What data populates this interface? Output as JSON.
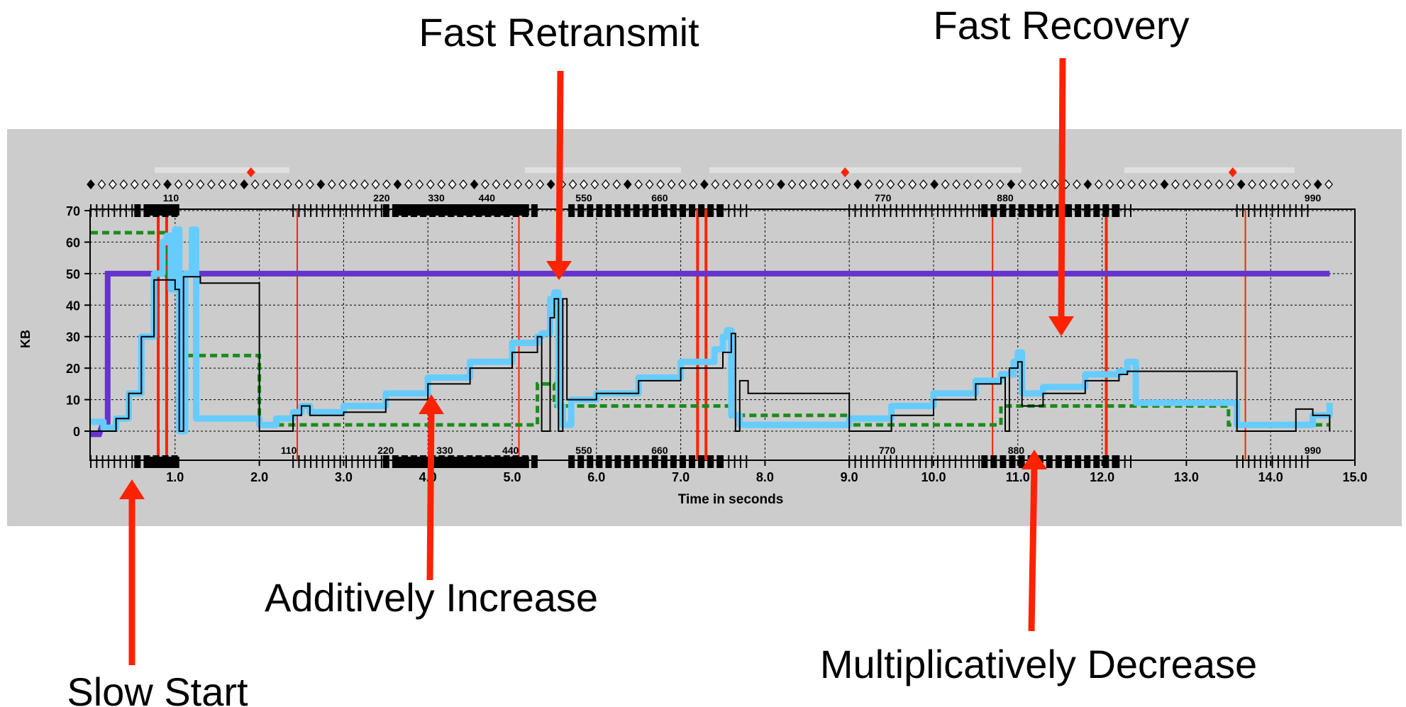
{
  "annotations": {
    "fast_retransmit": "Fast Retransmit",
    "fast_recovery": "Fast Recovery",
    "additively_increase": "Additively Increase",
    "multiplicatively_decrease": "Multiplicatively Decrease",
    "slow_start": "Slow Start"
  },
  "colors": {
    "panel_bg": "#cccccc",
    "congestion_window": "#66ccff",
    "outstanding_data": "#000000",
    "ssthresh": "#1a8c1a",
    "receive_window": "#6633cc",
    "retransmit_marker": "#ff2200",
    "arrow": "#ff2200"
  },
  "chart_data": {
    "type": "line",
    "xlabel": "Time in seconds",
    "ylabel": "KB",
    "xlim": [
      0,
      15
    ],
    "ylim": [
      -8,
      72
    ],
    "x_ticks": [
      "1.0",
      "2.0",
      "3.0",
      "4.0",
      "5.0",
      "6.0",
      "7.0",
      "8.0",
      "9.0",
      "10.0",
      "11.0",
      "12.0",
      "13.0",
      "14.0",
      "15.0"
    ],
    "y_ticks": [
      "0",
      "10",
      "20",
      "30",
      "40",
      "50",
      "60",
      "70"
    ],
    "grid": true,
    "top_segment_labels": [
      "110",
      "220",
      "330",
      "440",
      "550",
      "660",
      "770",
      "880",
      "990"
    ],
    "bottom_segment_labels": [
      "110",
      "220",
      "330",
      "440",
      "550",
      "660",
      "770",
      "880",
      "990"
    ],
    "timeout_times": [
      0.8,
      0.9,
      2.45,
      5.08,
      7.2,
      7.3,
      10.7,
      12.05,
      13.7
    ],
    "series": [
      {
        "key": "cwnd",
        "points": [
          [
            0,
            3
          ],
          [
            0.15,
            1
          ],
          [
            0.3,
            4
          ],
          [
            0.45,
            12
          ],
          [
            0.6,
            30
          ],
          [
            0.75,
            50
          ],
          [
            0.85,
            60
          ],
          [
            0.9,
            62
          ],
          [
            0.95,
            45
          ],
          [
            1.0,
            64
          ],
          [
            1.05,
            0
          ],
          [
            1.12,
            50
          ],
          [
            1.2,
            64
          ],
          [
            1.25,
            4
          ],
          [
            2.0,
            4
          ],
          [
            2.0,
            2
          ],
          [
            2.2,
            4
          ],
          [
            2.4,
            6
          ],
          [
            2.5,
            8
          ],
          [
            2.6,
            6
          ],
          [
            3.0,
            8
          ],
          [
            3.5,
            12
          ],
          [
            4.0,
            17
          ],
          [
            4.5,
            22
          ],
          [
            5.0,
            28
          ],
          [
            5.3,
            30
          ],
          [
            5.35,
            31
          ],
          [
            5.45,
            42
          ],
          [
            5.5,
            44
          ],
          [
            5.55,
            8
          ],
          [
            5.6,
            2
          ],
          [
            5.7,
            10
          ],
          [
            6.0,
            12
          ],
          [
            6.5,
            17
          ],
          [
            7.0,
            22
          ],
          [
            7.4,
            26
          ],
          [
            7.5,
            30
          ],
          [
            7.55,
            32
          ],
          [
            7.6,
            5
          ],
          [
            7.7,
            2
          ],
          [
            9.0,
            4
          ],
          [
            9.5,
            8
          ],
          [
            10.0,
            12
          ],
          [
            10.5,
            16
          ],
          [
            10.8,
            18
          ],
          [
            10.95,
            22
          ],
          [
            11.0,
            25
          ],
          [
            11.05,
            12
          ],
          [
            11.3,
            14
          ],
          [
            11.8,
            18
          ],
          [
            12.2,
            19
          ],
          [
            12.3,
            22
          ],
          [
            12.4,
            9
          ],
          [
            13.5,
            9
          ],
          [
            13.6,
            2
          ],
          [
            14.2,
            2
          ],
          [
            14.5,
            5
          ],
          [
            14.7,
            9
          ]
        ]
      },
      {
        "key": "outstanding",
        "points": [
          [
            0,
            0
          ],
          [
            0.15,
            0
          ],
          [
            0.3,
            4
          ],
          [
            0.45,
            12
          ],
          [
            0.6,
            30
          ],
          [
            0.75,
            48
          ],
          [
            0.9,
            48
          ],
          [
            1.0,
            45
          ],
          [
            1.05,
            0
          ],
          [
            1.1,
            49
          ],
          [
            1.3,
            47
          ],
          [
            2.0,
            47
          ],
          [
            2.0,
            0
          ],
          [
            2.4,
            5
          ],
          [
            2.5,
            8
          ],
          [
            2.6,
            5
          ],
          [
            3.0,
            6
          ],
          [
            3.5,
            10
          ],
          [
            4.0,
            15
          ],
          [
            4.5,
            20
          ],
          [
            5.0,
            25
          ],
          [
            5.3,
            30
          ],
          [
            5.35,
            0
          ],
          [
            5.45,
            36
          ],
          [
            5.5,
            42
          ],
          [
            5.55,
            0
          ],
          [
            5.6,
            42
          ],
          [
            5.65,
            10
          ],
          [
            6.0,
            12
          ],
          [
            6.5,
            16
          ],
          [
            7.0,
            20
          ],
          [
            7.5,
            25
          ],
          [
            7.6,
            31
          ],
          [
            7.65,
            0
          ],
          [
            7.7,
            16
          ],
          [
            7.8,
            12
          ],
          [
            9.0,
            12
          ],
          [
            9.0,
            0
          ],
          [
            9.5,
            5
          ],
          [
            10.0,
            10
          ],
          [
            10.5,
            15
          ],
          [
            10.8,
            17
          ],
          [
            10.85,
            0
          ],
          [
            10.9,
            20
          ],
          [
            11.0,
            22
          ],
          [
            11.05,
            8
          ],
          [
            11.3,
            12
          ],
          [
            11.8,
            16
          ],
          [
            12.2,
            18
          ],
          [
            12.3,
            19
          ],
          [
            13.5,
            19
          ],
          [
            13.6,
            0
          ],
          [
            14.2,
            0
          ],
          [
            14.3,
            7
          ],
          [
            14.5,
            5
          ],
          [
            14.7,
            0
          ]
        ]
      },
      {
        "key": "ssthresh",
        "points": [
          [
            0,
            63
          ],
          [
            0.9,
            63
          ],
          [
            0.9,
            48
          ],
          [
            1.0,
            48
          ],
          [
            1.0,
            60
          ],
          [
            1.05,
            60
          ],
          [
            1.05,
            24
          ],
          [
            2.0,
            24
          ],
          [
            2.0,
            2
          ],
          [
            5.3,
            2
          ],
          [
            5.3,
            15
          ],
          [
            5.5,
            15
          ],
          [
            5.5,
            8
          ],
          [
            7.6,
            8
          ],
          [
            7.6,
            5
          ],
          [
            9.0,
            5
          ],
          [
            9.0,
            2
          ],
          [
            10.8,
            2
          ],
          [
            10.8,
            8
          ],
          [
            13.5,
            8
          ],
          [
            13.5,
            2
          ],
          [
            14.7,
            2
          ]
        ]
      },
      {
        "key": "rwnd",
        "points": [
          [
            0,
            -1
          ],
          [
            0.1,
            -1
          ],
          [
            0.15,
            3
          ],
          [
            0.2,
            3
          ],
          [
            0.2,
            50
          ],
          [
            14.7,
            50
          ]
        ]
      }
    ]
  }
}
